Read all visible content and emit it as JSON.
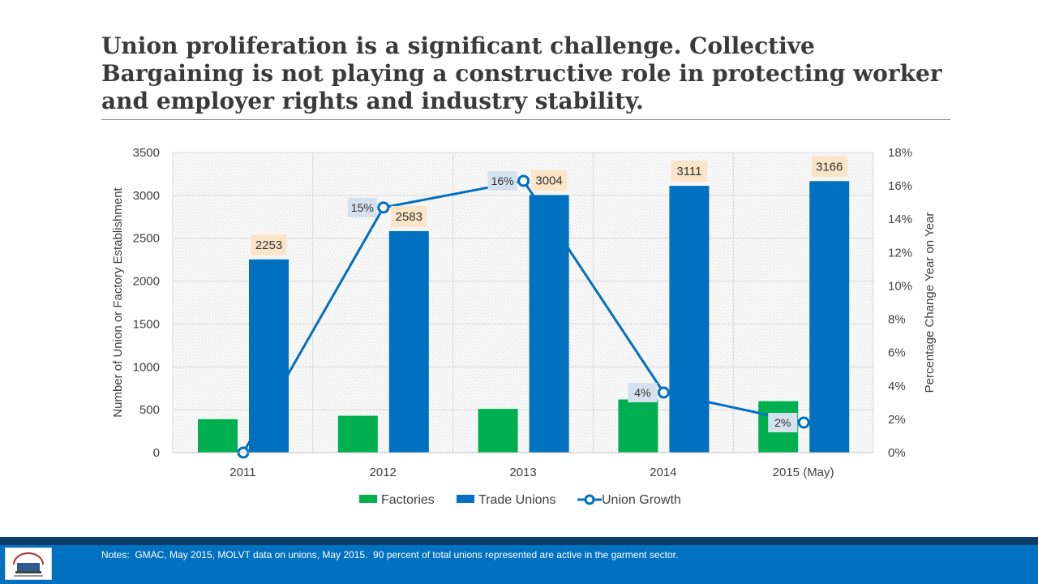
{
  "slide": {
    "title": "Union proliferation is a significant challenge. Collective Bargaining is not playing a constructive role in protecting worker and employer rights and industry stability.",
    "notes": "Notes:  GMAC, May 2015, MOLVT data on unions, May 2015.  90 percent of total unions represented are active in the garment sector."
  },
  "colors": {
    "factories": "#00b050",
    "trade_unions": "#0070c0",
    "union_growth": "#0070c0",
    "bar_label_bg": "#fce4c8",
    "line_label_bg": "#d5e2ee",
    "footer": "#0070c0"
  },
  "chart_data": {
    "type": "bar",
    "categories": [
      "2011",
      "2012",
      "2013",
      "2014",
      "2015 (May)"
    ],
    "series": [
      {
        "name": "Factories",
        "type": "bar",
        "axis": "left",
        "values": [
          390,
          430,
          510,
          620,
          600
        ]
      },
      {
        "name": "Trade Unions",
        "type": "bar",
        "axis": "left",
        "values": [
          2253,
          2583,
          3004,
          3111,
          3166
        ],
        "labels": [
          "2253",
          "2583",
          "3004",
          "3111",
          "3166"
        ]
      },
      {
        "name": "Union Growth",
        "type": "line",
        "axis": "right",
        "values": [
          0,
          14.7,
          16.3,
          3.6,
          1.8
        ],
        "labels": [
          "",
          "15%",
          "16%",
          "4%",
          "2%"
        ]
      }
    ],
    "ylabel": "Number of Union or Factory Establishment",
    "y2label": "Percentage Change Year on Year",
    "ylim": [
      0,
      3500
    ],
    "y2lim": [
      0,
      18
    ],
    "yticks": [
      "0",
      "500",
      "1000",
      "1500",
      "2000",
      "2500",
      "3000",
      "3500"
    ],
    "y2ticks": [
      "0%",
      "2%",
      "4%",
      "6%",
      "8%",
      "10%",
      "12%",
      "14%",
      "16%",
      "18%"
    ],
    "grid": true,
    "legend": "bottom"
  }
}
